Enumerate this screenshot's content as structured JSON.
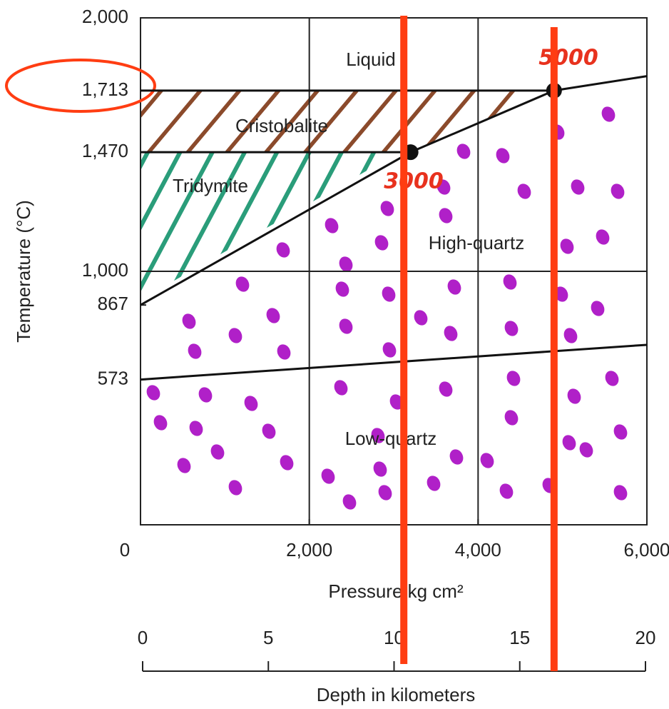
{
  "chart_data": {
    "type": "phase-diagram",
    "x_label": "Pressure kg cm²",
    "y_label": "Temperature (°C)",
    "x2_label": "Depth in kilometers",
    "xlim": [
      0,
      6000
    ],
    "xticks": [
      0,
      {
        "value": 2000,
        "label": "2,000"
      },
      {
        "value": 4000,
        "label": "4,000"
      },
      {
        "value": 6000,
        "label": "6,000"
      }
    ],
    "ylim": [
      0,
      2000
    ],
    "yticks": [
      {
        "value": 2000,
        "label": "2,000"
      },
      {
        "value": 1713,
        "label": "1,713"
      },
      {
        "value": 1470,
        "label": "1,470"
      },
      {
        "value": 1000,
        "label": "1,000"
      },
      867,
      573
    ],
    "x2lim": [
      0,
      20
    ],
    "x2ticks": [
      0,
      5,
      10,
      15,
      20
    ],
    "xgrid": [
      2000,
      4000
    ],
    "ygrid": [
      1000
    ],
    "series": [
      {
        "color": "#111111",
        "x": [
          0,
          6000
        ],
        "values": [
          573,
          710
        ]
      },
      {
        "color": "#111111",
        "x": [
          0,
          3200,
          4900,
          6000
        ],
        "values": [
          867,
          1470,
          1713,
          1770
        ]
      },
      {
        "color": "#111111",
        "x": [
          0,
          4900
        ],
        "values": [
          1713,
          1713
        ]
      },
      {
        "color": "#111111",
        "x": [
          0,
          3200
        ],
        "values": [
          1470,
          1470
        ]
      }
    ],
    "regions": [
      "Liquid",
      "Cristobalite",
      "Tridymite",
      "High-quartz",
      "Low-quartz"
    ],
    "notes": [
      "5000",
      "3000"
    ],
    "highlight_x": [
      3120,
      4900
    ],
    "highlight_color": "#ff3d12"
  }
}
